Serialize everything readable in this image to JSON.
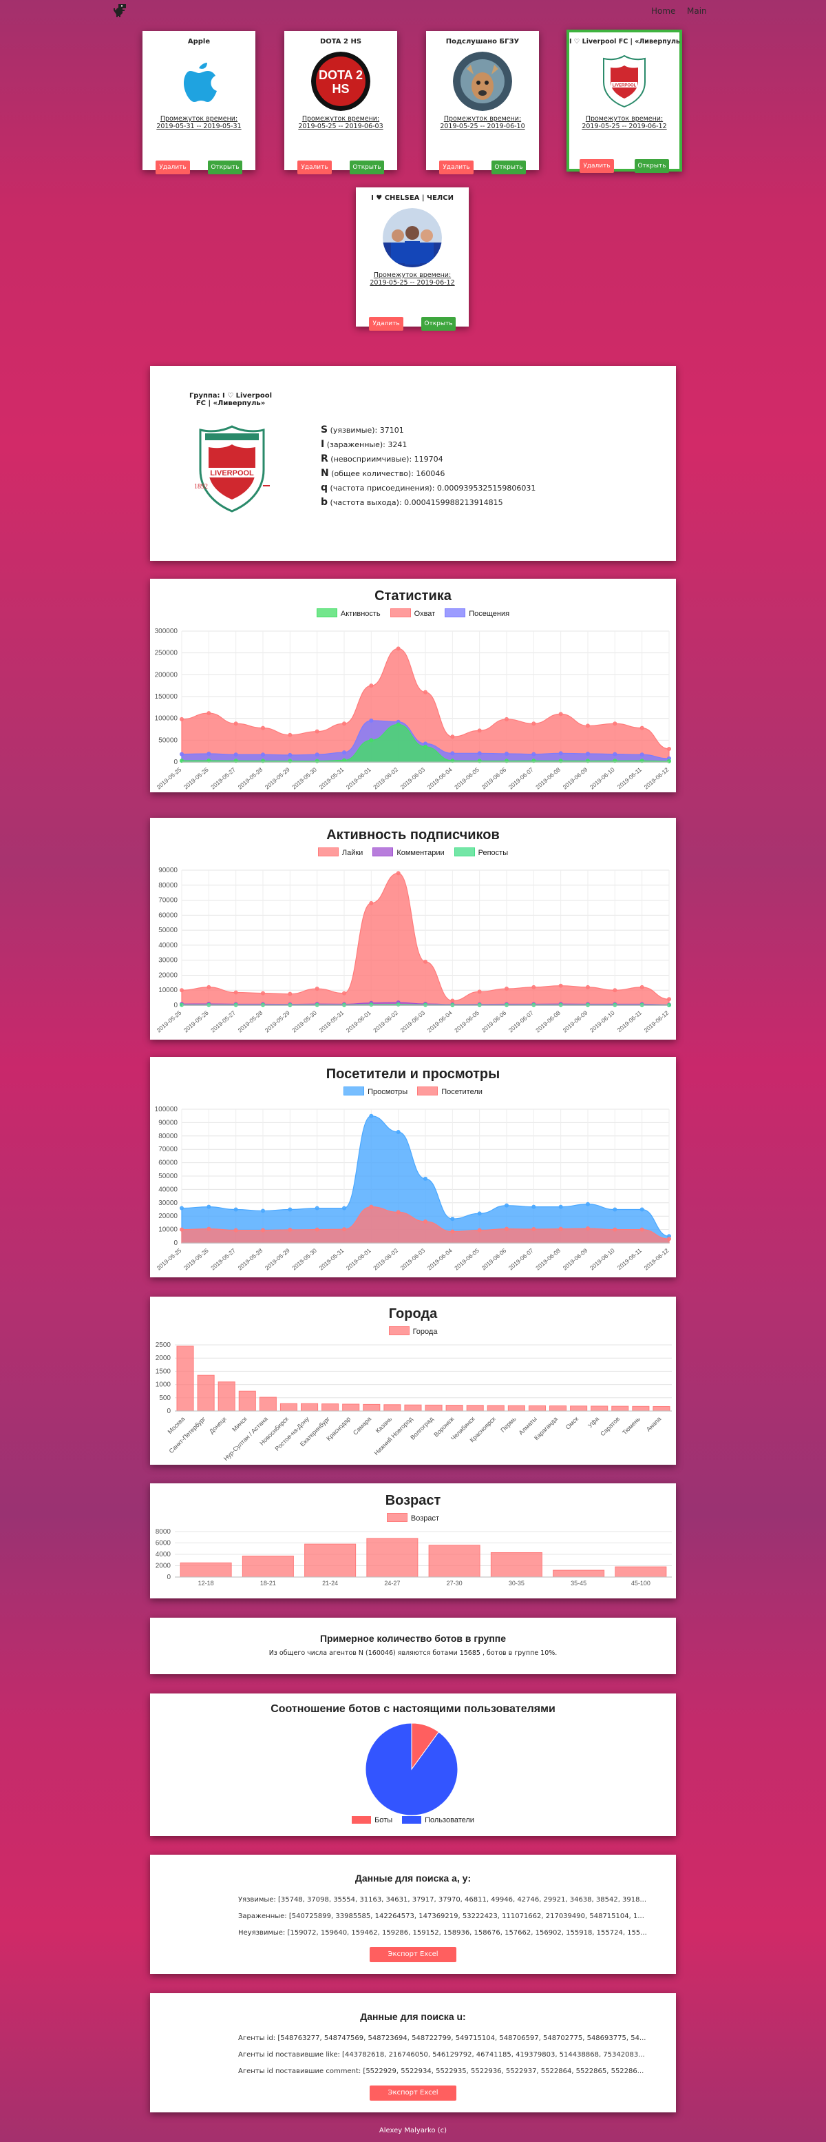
{
  "nav": {
    "home": "Home",
    "main": "Main"
  },
  "groups": [
    {
      "title": "Apple",
      "period_label": "Промежуток времени:",
      "period": "2019-05-31 -- 2019-05-31",
      "delete": "Удалить",
      "open": "Открыть"
    },
    {
      "title": "DOTA 2 HS",
      "period_label": "Промежуток времени:",
      "period": "2019-05-25 -- 2019-06-03",
      "delete": "Удалить",
      "open": "Открыть"
    },
    {
      "title": "Подслушано БГЗУ",
      "period_label": "Промежуток времени:",
      "period": "2019-05-25 -- 2019-06-10",
      "delete": "Удалить",
      "open": "Открыть"
    },
    {
      "title": "I ♡ Liverpool FC | «Ливерпуль»",
      "period_label": "Промежуток времени:",
      "period": "2019-05-25 -- 2019-06-12",
      "delete": "Удалить",
      "open": "Открыть"
    },
    {
      "title": "I ♥ CHELSEA | ЧЕЛСИ",
      "period_label": "Промежуток времени:",
      "period": "2019-05-25 -- 2019-06-12",
      "delete": "Удалить",
      "open": "Открыть"
    }
  ],
  "group_info": {
    "title": "Группа: I ♡ Liverpool FC | «Ливерпуль»",
    "S": "S",
    "S_text": "(уязвимые): 37101",
    "I": "I",
    "I_text": "(зараженные): 3241",
    "R": "R",
    "R_text": "(невосприимчивые): 119704",
    "N": "N",
    "N_text": "(общее количество): 160046",
    "q": "q",
    "q_text": "(частота присоединения): 0.0009395325159806031",
    "b": "b",
    "b_text": "(частота выхода): 0.0004159988213914815"
  },
  "dates": [
    "2019-05-25",
    "2019-05-26",
    "2019-05-27",
    "2019-05-28",
    "2019-05-29",
    "2019-05-30",
    "2019-05-31",
    "2019-06-01",
    "2019-06-02",
    "2019-06-03",
    "2019-06-04",
    "2019-06-05",
    "2019-06-06",
    "2019-06-07",
    "2019-06-08",
    "2019-06-09",
    "2019-06-10",
    "2019-06-11",
    "2019-06-12"
  ],
  "charts": {
    "stats": {
      "title": "Статистика",
      "type": "area",
      "ymax": 300000,
      "ystep": 50000,
      "series": [
        {
          "name": "Активность",
          "color": "#44dd66",
          "values": [
            3000,
            3200,
            2800,
            2500,
            2300,
            2200,
            4000,
            50000,
            86000,
            35000,
            3000,
            2500,
            2500,
            2800,
            2600,
            2500,
            2700,
            2800,
            2000
          ]
        },
        {
          "name": "Охват",
          "color": "#ff7b7b",
          "values": [
            98000,
            112000,
            88000,
            78000,
            62000,
            70000,
            88000,
            175000,
            260000,
            160000,
            58000,
            72000,
            98000,
            88000,
            110000,
            83000,
            88000,
            78000,
            30000
          ]
        },
        {
          "name": "Посещения",
          "color": "#7b7bff",
          "values": [
            18000,
            19000,
            17000,
            17000,
            16000,
            17000,
            22000,
            95000,
            92000,
            42000,
            20000,
            20000,
            19000,
            18000,
            20000,
            19000,
            18000,
            17000,
            8000
          ]
        }
      ]
    },
    "activity": {
      "title": "Активность подписчиков",
      "type": "area",
      "ymax": 90000,
      "ystep": 10000,
      "series": [
        {
          "name": "Лайки",
          "color": "#ff7b7b",
          "values": [
            10000,
            12000,
            8500,
            8000,
            7500,
            11000,
            8000,
            68000,
            88000,
            29000,
            3000,
            9000,
            11000,
            12000,
            13000,
            12000,
            10000,
            12000,
            4000
          ]
        },
        {
          "name": "Комментарии",
          "color": "#a052d0",
          "values": [
            800,
            900,
            700,
            700,
            600,
            800,
            700,
            1500,
            1800,
            900,
            500,
            600,
            700,
            700,
            800,
            700,
            700,
            700,
            300
          ]
        },
        {
          "name": "Репосты",
          "color": "#44dd88",
          "values": [
            200,
            200,
            150,
            150,
            120,
            200,
            150,
            400,
            500,
            250,
            100,
            150,
            150,
            180,
            200,
            180,
            150,
            150,
            80
          ]
        }
      ]
    },
    "visitors": {
      "title": "Посетители и просмотры",
      "type": "area",
      "ymax": 100000,
      "ystep": 10000,
      "series": [
        {
          "name": "Просмотры",
          "color": "#4aa8ff",
          "values": [
            26000,
            27000,
            25000,
            24000,
            25000,
            26000,
            26000,
            95000,
            83000,
            48000,
            18000,
            22000,
            28000,
            27000,
            27000,
            29000,
            25000,
            25000,
            5000
          ]
        },
        {
          "name": "Посетители",
          "color": "#ff7b7b",
          "values": [
            10000,
            10500,
            9500,
            9500,
            9800,
            10000,
            10200,
            27000,
            23000,
            16000,
            8500,
            9500,
            10500,
            10300,
            10500,
            10800,
            10000,
            10000,
            3000
          ]
        }
      ]
    },
    "cities": {
      "title": "Города",
      "type": "bar",
      "ymax": 2500,
      "ystep": 500,
      "series_name": "Города",
      "color": "#ff7b7b",
      "categories": [
        "Москва",
        "Санкт-Петербург",
        "Донецк",
        "Минск",
        "Нур-Султан / Астана",
        "Новосибирск",
        "Ростов-на-Дону",
        "Екатеринбург",
        "Краснодар",
        "Самара",
        "Казань",
        "Нижний Новгород",
        "Волгоград",
        "Воронеж",
        "Челябинск",
        "Красноярск",
        "Пермь",
        "Алматы",
        "Караганда",
        "Омск",
        "Уфа",
        "Саратов",
        "Тюмень",
        "Анапа"
      ],
      "values": [
        2450,
        1350,
        1100,
        750,
        520,
        280,
        280,
        270,
        260,
        250,
        240,
        230,
        225,
        220,
        215,
        210,
        205,
        200,
        195,
        190,
        185,
        180,
        175,
        170
      ]
    },
    "age": {
      "title": "Возраст",
      "type": "bar",
      "ymax": 8000,
      "ystep": 2000,
      "series_name": "Возраст",
      "color": "#ff7b7b",
      "categories": [
        "12-18",
        "18-21",
        "21-24",
        "24-27",
        "27-30",
        "30-35",
        "35-45",
        "45-100"
      ],
      "values": [
        2500,
        3700,
        5800,
        6800,
        5600,
        4300,
        1200,
        1800
      ]
    }
  },
  "bots": {
    "title": "Примерное количество ботов в группе",
    "text": "Из общего числа агентов N (160046) являются ботами 15685 , ботов в группе 10%."
  },
  "ratio": {
    "title": "Соотношение ботов с настоящими пользователями",
    "legend": [
      "Боты",
      "Пользователи"
    ],
    "values": [
      10,
      90
    ],
    "colors": [
      "#ff5f5f",
      "#3355ff"
    ]
  },
  "search_ay": {
    "title": "Данные для поиска a, y:",
    "rows": [
      "Уязвимые: [35748, 37098, 35554, 31163, 34631, 37917, 37970, 46811, 49946, 42746, 29921, 34638, 38542, 3918...",
      "Зараженные: [540725899, 33985585, 142264573, 147369219, 53222423, 111071662, 217039490, 548715104, 1...",
      "Неуязвимые: [159072, 159640, 159462, 159286, 159152, 158936, 158676, 157662, 156902, 155918, 155724, 155..."
    ],
    "export": "Экспорт Excel"
  },
  "search_u": {
    "title": "Данные для поиска u:",
    "rows": [
      "Агенты id: [548763277, 548747569, 548723694, 548722799, 549715104, 548706597, 548702775, 548693775, 54...",
      "Агенты id поставившие like: [443782618, 216746050, 546129792, 46741185, 419379803, 514438868, 75342083...",
      "Агенты id поставившие comment: [5522929, 5522934, 5522935, 5522936, 5522937, 5522864, 5522865, 552286..."
    ],
    "export": "Экспорт Excel"
  },
  "footer": "Alexey Malyarko (c)"
}
